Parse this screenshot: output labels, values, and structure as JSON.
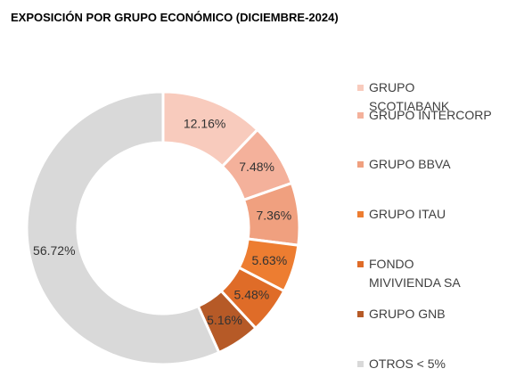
{
  "chart_data": {
    "type": "donut",
    "title": "EXPOSICIÓN POR GRUPO ECONÓMICO (DICIEMBRE-2024)",
    "categories": [
      "GRUPO SCOTIABANK",
      "GRUPO INTERCORP",
      "GRUPO BBVA",
      "GRUPO ITAU",
      "FONDO MIVIVIENDA SA",
      "GRUPO GNB",
      "OTROS < 5%"
    ],
    "values": [
      12.16,
      7.48,
      7.36,
      5.63,
      5.48,
      5.16,
      56.72
    ],
    "value_labels": [
      "12.16%",
      "7.48%",
      "7.36%",
      "5.63%",
      "5.48%",
      "5.16%",
      "56.72%"
    ],
    "colors": [
      "#f8cbbd",
      "#f4b19b",
      "#f0a07f",
      "#ed7d31",
      "#df6c28",
      "#b65a27",
      "#d9d9d9"
    ],
    "legend": "right"
  }
}
